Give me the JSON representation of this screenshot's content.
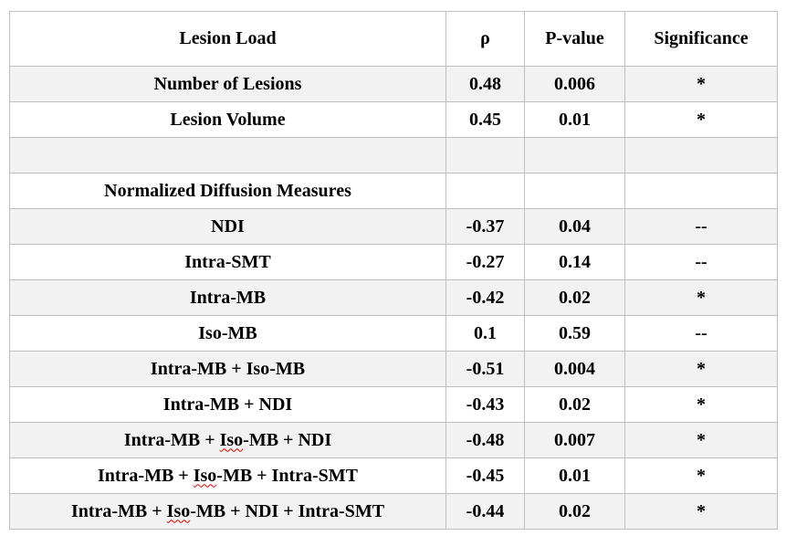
{
  "table": {
    "columns": [
      "Lesion Load",
      "ρ",
      "P-value",
      "Significance"
    ],
    "rows": [
      {
        "label": "Number of Lesions",
        "rho": "0.48",
        "p": "0.006",
        "sig": "*"
      },
      {
        "label": "Lesion Volume",
        "rho": "0.45",
        "p": "0.01",
        "sig": "*"
      },
      {
        "label": "",
        "rho": "",
        "p": "",
        "sig": ""
      },
      {
        "label": "Normalized Diffusion Measures",
        "rho": "",
        "p": "",
        "sig": ""
      },
      {
        "label": "NDI",
        "rho": "-0.37",
        "p": "0.04",
        "sig": "--"
      },
      {
        "label": "Intra-SMT",
        "rho": "-0.27",
        "p": "0.14",
        "sig": "--"
      },
      {
        "label": "Intra-MB",
        "rho": "-0.42",
        "p": "0.02",
        "sig": "*"
      },
      {
        "label": "Iso-MB",
        "rho": "0.1",
        "p": "0.59",
        "sig": "--"
      },
      {
        "label": "Intra-MB + Iso-MB",
        "rho": "-0.51",
        "p": "0.004",
        "sig": "*"
      },
      {
        "label": "Intra-MB + NDI",
        "rho": "-0.43",
        "p": "0.02",
        "sig": "*"
      },
      {
        "label": "Intra-MB + Iso-MB + NDI",
        "rho": "-0.48",
        "p": "0.007",
        "sig": "*",
        "spellcheck_word": "Iso"
      },
      {
        "label": "Intra-MB + Iso-MB + Intra-SMT",
        "rho": "-0.45",
        "p": "0.01",
        "sig": "*",
        "spellcheck_word": "Iso"
      },
      {
        "label": "Intra-MB + Iso-MB + NDI + Intra-SMT",
        "rho": "-0.44",
        "p": "0.02",
        "sig": "*",
        "spellcheck_word": "Iso"
      }
    ],
    "colors": {
      "border": "#bfbfbf",
      "shaded_row_bg": "#f2f2f2",
      "text": "#000000",
      "spellcheck_underline": "#e00000",
      "page_background": "#ffffff"
    }
  }
}
